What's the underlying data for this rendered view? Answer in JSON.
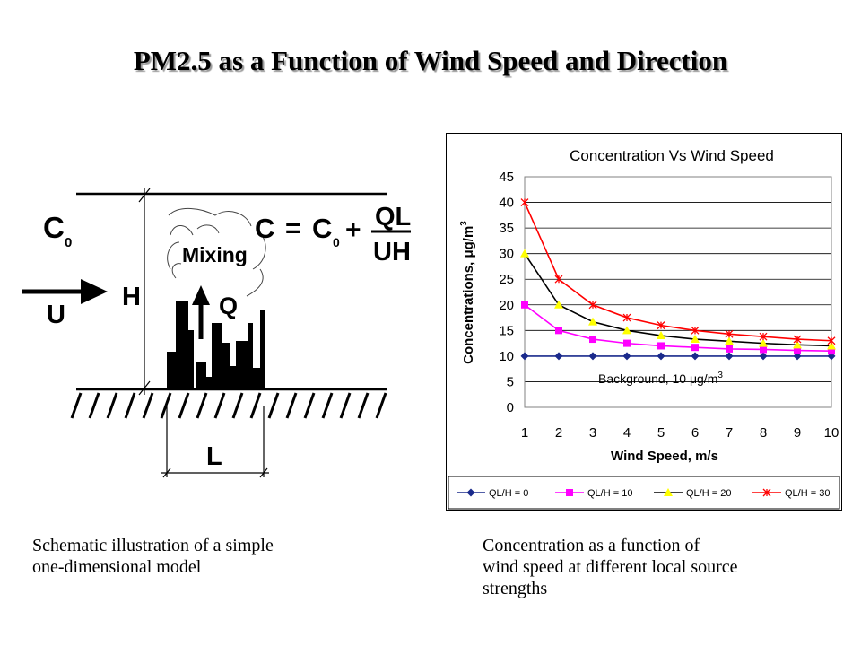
{
  "slide": {
    "title": "PM2.5 as a Function of Wind Speed and Direction"
  },
  "schematic": {
    "c0": "C",
    "c0_sub": "0",
    "u": "U",
    "h": "H",
    "mixing": "Mixing",
    "q": "Q",
    "l": "L",
    "eq_c": "C",
    "eq_equals": "=",
    "eq_c0": "C",
    "eq_c0_sub": "0",
    "eq_plus": "+",
    "eq_num": "QL",
    "eq_den": "UH"
  },
  "captions": {
    "left_line1": "Schematic illustration of a simple",
    "left_line2": "one-dimensional model",
    "right_line1": "Concentration as a function of",
    "right_line2": "wind speed at different local source",
    "right_line3": "strengths"
  },
  "chart_data": {
    "type": "line",
    "title": "Concentration Vs Wind Speed",
    "xlabel": "Wind Speed, m/s",
    "ylabel": "Concentrations, μg/m",
    "ylabel_sup": "3",
    "annotation": "Background, 10 μg/m",
    "annotation_sup": "3",
    "x": [
      1,
      2,
      3,
      4,
      5,
      6,
      7,
      8,
      9,
      10
    ],
    "xlim": [
      1,
      10
    ],
    "ylim": [
      0,
      45
    ],
    "yticks": [
      0,
      5,
      10,
      15,
      20,
      25,
      30,
      35,
      40,
      45
    ],
    "legend_position": "bottom",
    "series": [
      {
        "name": "QL/H = 0",
        "color": "#1a2a8c",
        "marker": "diamond",
        "values": [
          10,
          10,
          10,
          10,
          10,
          10,
          10,
          10,
          10,
          10
        ]
      },
      {
        "name": "QL/H = 10",
        "color": "#ff00ff",
        "marker": "square",
        "values": [
          20,
          15,
          13.3,
          12.5,
          12,
          11.7,
          11.4,
          11.3,
          11.1,
          11
        ]
      },
      {
        "name": "QL/H = 20",
        "color": "#ffff00",
        "line_color": "#000000",
        "marker": "triangle",
        "values": [
          30,
          20,
          16.7,
          15,
          14,
          13.3,
          12.9,
          12.5,
          12.2,
          12
        ]
      },
      {
        "name": "QL/H = 30",
        "color": "#ff0000",
        "marker": "star",
        "values": [
          40,
          25,
          20,
          17.5,
          16,
          15,
          14.3,
          13.8,
          13.3,
          13
        ]
      }
    ]
  }
}
